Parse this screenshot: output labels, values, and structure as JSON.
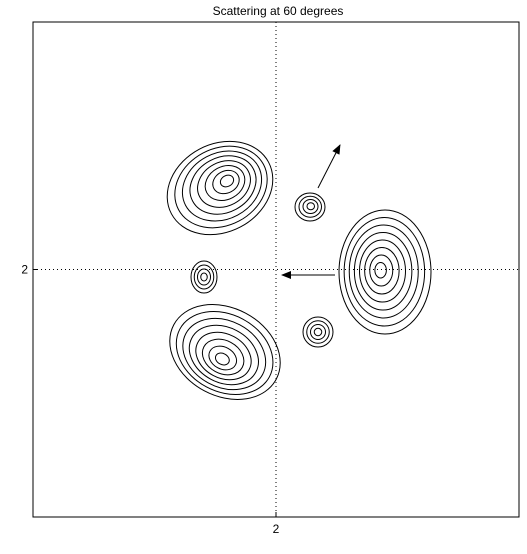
{
  "chart_data": {
    "type": "contour",
    "title": "Scattering at 60 degrees",
    "xlim": [
      0,
      4
    ],
    "ylim": [
      0,
      4
    ],
    "xticks": [
      2
    ],
    "yticks": [
      2
    ],
    "grid": true
  }
}
